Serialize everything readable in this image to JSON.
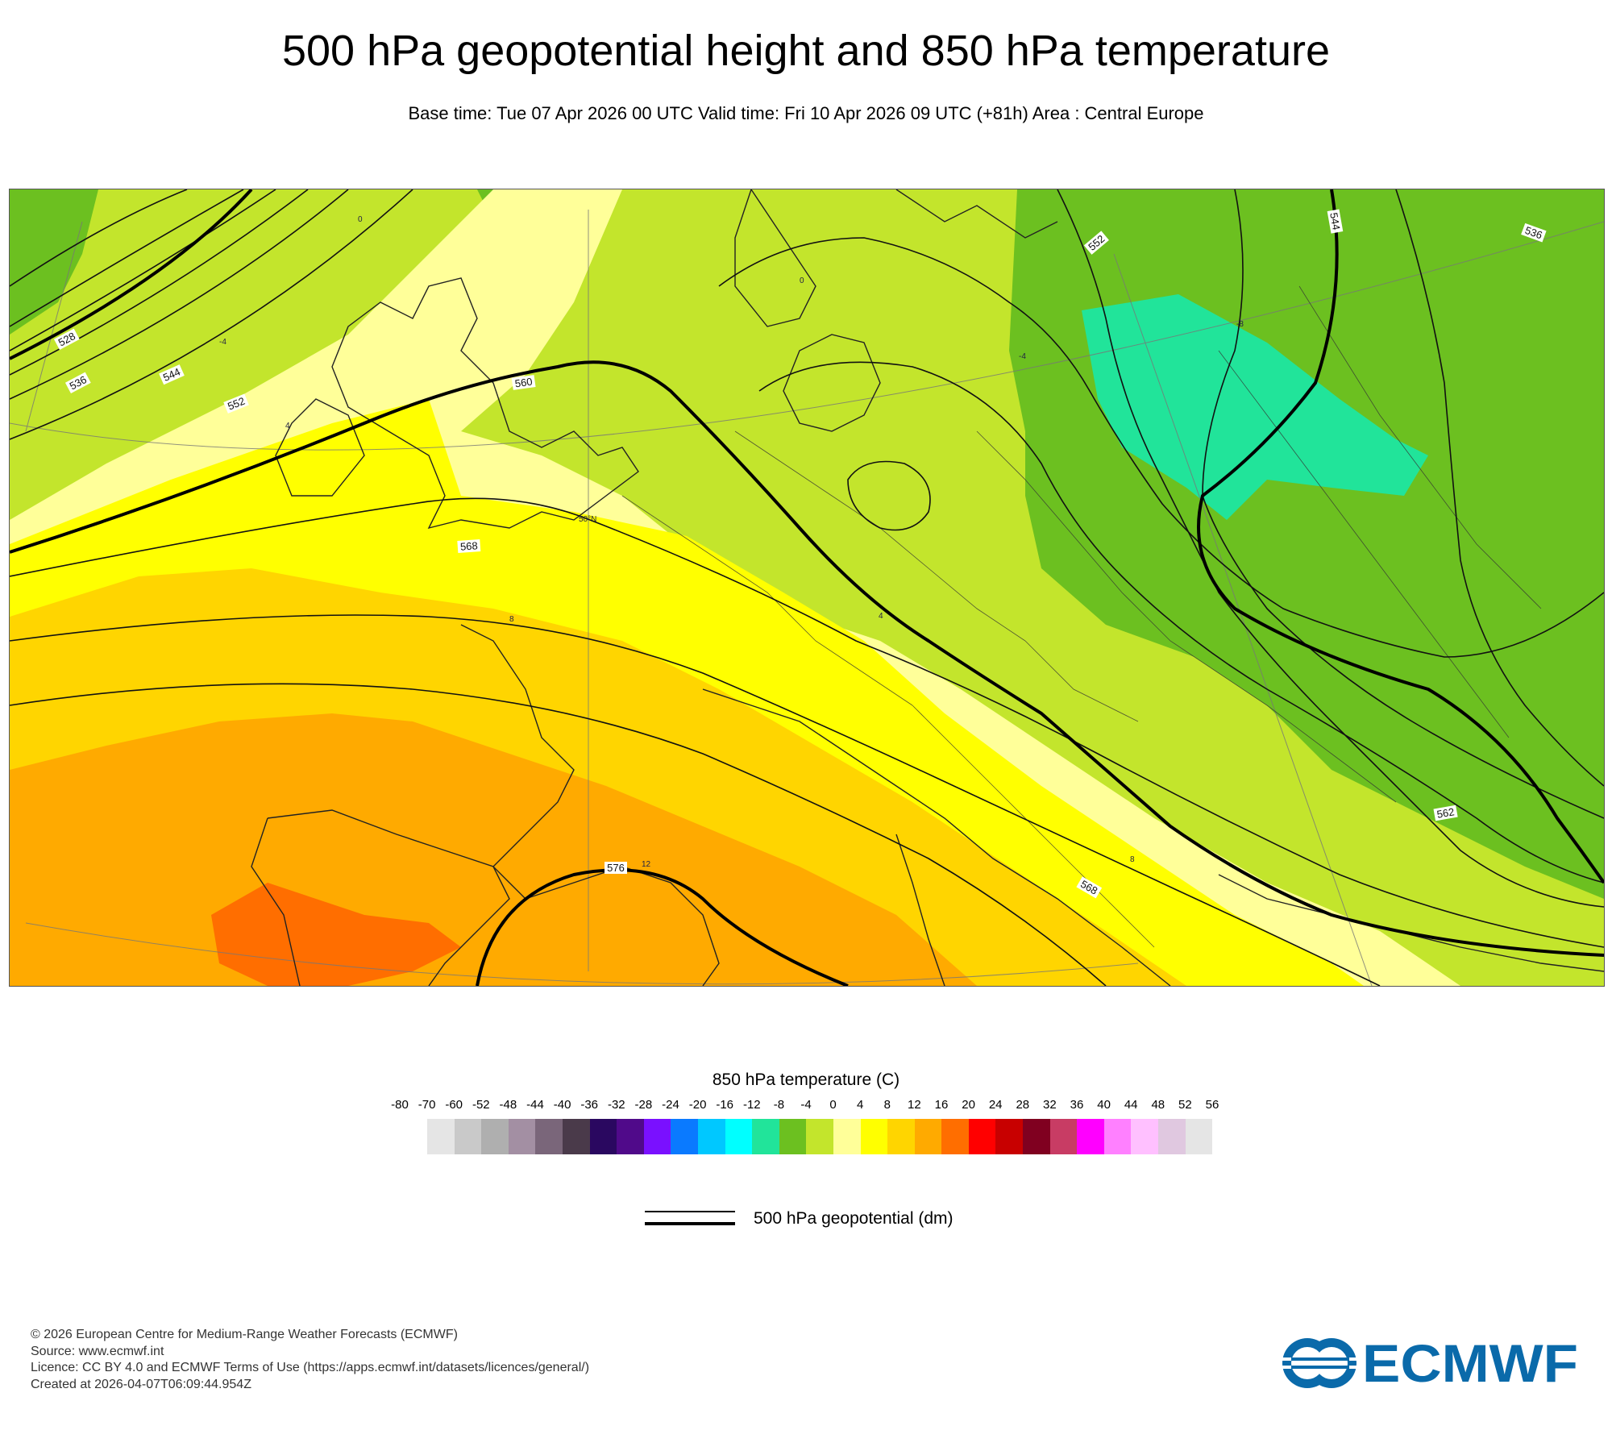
{
  "header": {
    "title": "500 hPa geopotential height and 850 hPa temperature",
    "subtitle": "Base time: Tue 07 Apr 2026 00 UTC Valid time: Fri 10 Apr 2026 09 UTC (+81h) Area : Central Europe"
  },
  "map": {
    "contour_labels": [
      "528",
      "536",
      "544",
      "552",
      "560",
      "568",
      "576",
      "552",
      "544",
      "536",
      "562",
      "568"
    ],
    "temp_labels": [
      "0",
      "-4",
      "4",
      "8",
      "12",
      "-8",
      "0",
      "-4",
      "4",
      "8"
    ],
    "lat_label": "50°N"
  },
  "legend": {
    "title": "850 hPa temperature (C)",
    "ticks": [
      "-80",
      "-70",
      "-60",
      "-52",
      "-48",
      "-44",
      "-40",
      "-36",
      "-32",
      "-28",
      "-24",
      "-20",
      "-16",
      "-12",
      "-8",
      "-4",
      "0",
      "4",
      "8",
      "12",
      "16",
      "20",
      "24",
      "28",
      "32",
      "36",
      "40",
      "44",
      "48",
      "52",
      "56"
    ],
    "colors": [
      "#e5e5e5",
      "#c9c9c9",
      "#afafaf",
      "#a38fa3",
      "#7a667a",
      "#4a3a4a",
      "#2a0860",
      "#500a8a",
      "#7a10ff",
      "#0a7aff",
      "#00c8ff",
      "#00ffff",
      "#21e49a",
      "#6cc020",
      "#c3e52c",
      "#ffff99",
      "#ffff00",
      "#ffd500",
      "#ffaa00",
      "#ff6e00",
      "#ff0000",
      "#c80000",
      "#800020",
      "#c83c64",
      "#ff00ff",
      "#ff80ff",
      "#ffc0ff",
      "#e0c8e0",
      "#e5e5e5"
    ],
    "line_label": "500 hPa geopotential (dm)"
  },
  "footer": {
    "copyright": "© 2026 European Centre for Medium-Range Weather Forecasts (ECMWF)",
    "source": "Source: www.ecmwf.int",
    "licence": "Licence: CC BY 4.0 and ECMWF Terms of Use (https://apps.ecmwf.int/datasets/licences/general/)",
    "created": "Created at 2026-04-07T06:09:44.954Z"
  },
  "logo": {
    "text": "ECMWF",
    "color": "#0a6aaa"
  }
}
